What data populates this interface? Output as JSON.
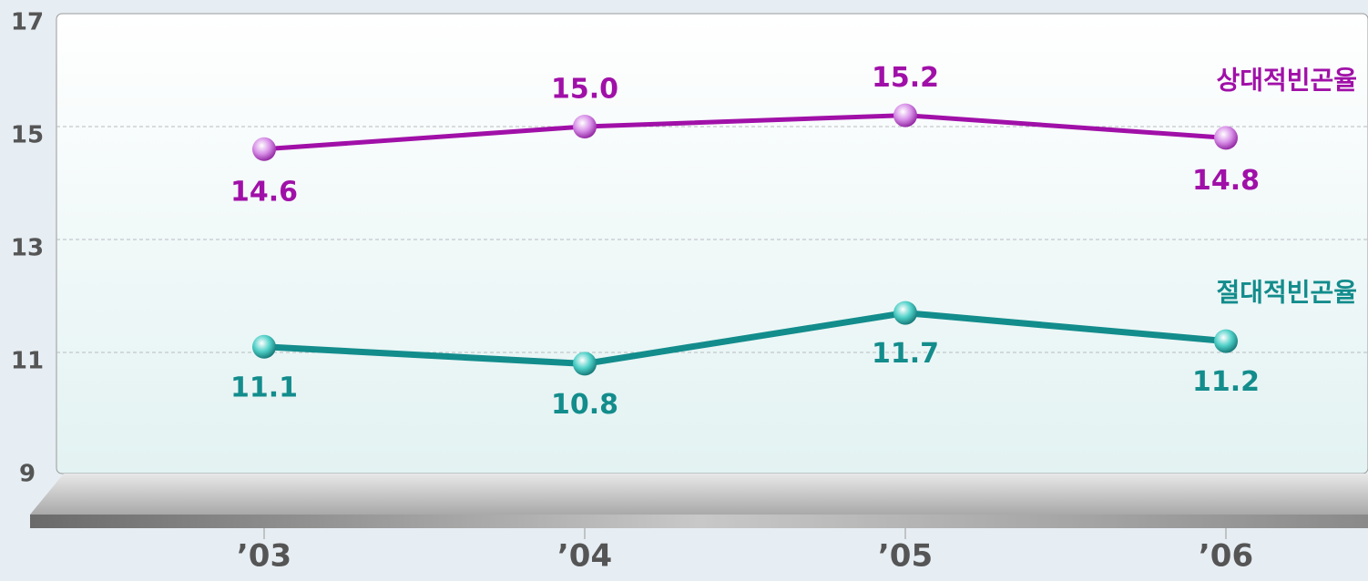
{
  "chart_data": {
    "type": "line",
    "categories": [
      "’03",
      "’04",
      "’05",
      "’06"
    ],
    "series": [
      {
        "name": "상대적빈곤율",
        "color": "#a010a8",
        "values": [
          14.6,
          15.0,
          15.2,
          14.8
        ],
        "value_labels": [
          "14.6",
          "15.0",
          "15.2",
          "14.8"
        ]
      },
      {
        "name": "절대적빈곤율",
        "color": "#138c8c",
        "values": [
          11.1,
          10.8,
          11.7,
          11.2
        ],
        "value_labels": [
          "11.1",
          "10.8",
          "11.7",
          "11.2"
        ]
      }
    ],
    "ylim": [
      9,
      17
    ],
    "yticks": [
      9,
      11,
      13,
      15,
      17
    ],
    "grid": true
  }
}
